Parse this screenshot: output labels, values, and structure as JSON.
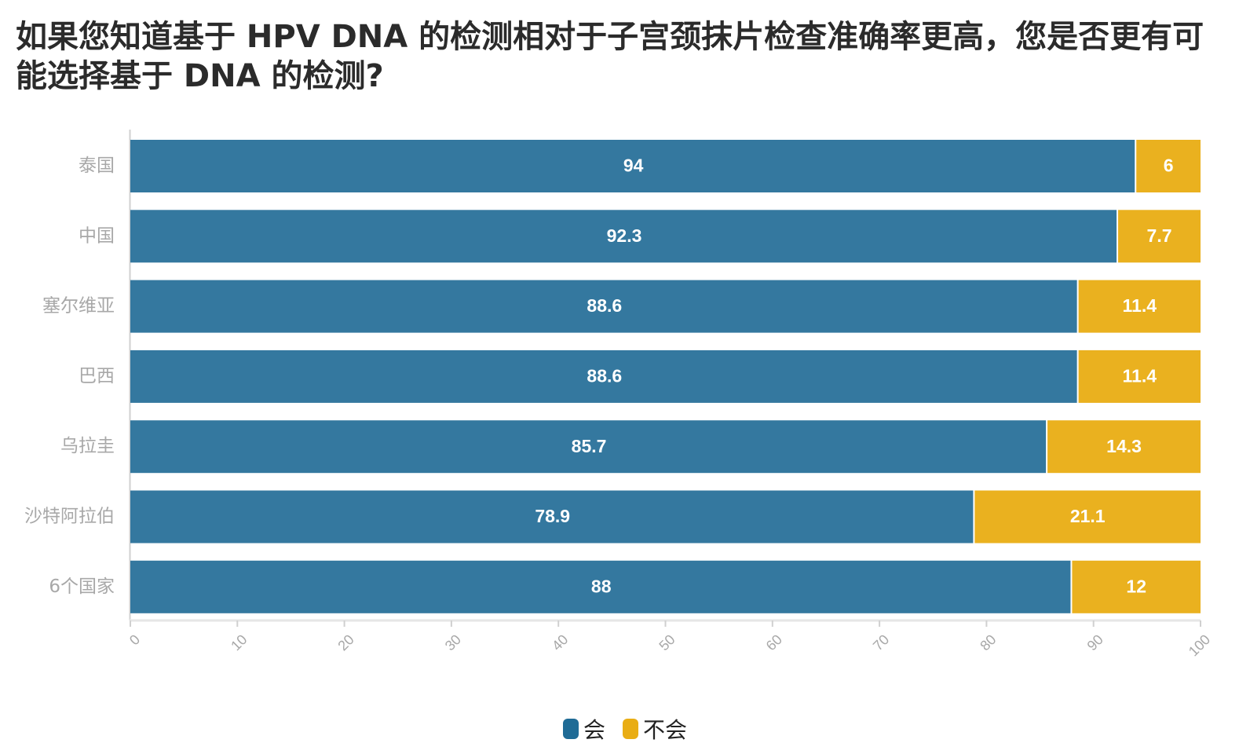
{
  "title": "如果您知道基于 HPV DNA 的检测相对于子宫颈抹片检查准确率更高，您是否更有可能选择基于 DNA 的检测?",
  "colors": {
    "yes": "#34789f",
    "no": "#eab11f",
    "axis": "#d0d0d0",
    "label": "#a8a8a8"
  },
  "legend": [
    {
      "label": "会",
      "color": "#1f6b96"
    },
    {
      "label": "不会",
      "color": "#e9ad14"
    }
  ],
  "chart_data": {
    "type": "bar",
    "orientation": "horizontal",
    "stacked": true,
    "categories": [
      "泰国",
      "中国",
      "塞尔维亚",
      "巴西",
      "乌拉圭",
      "沙特阿拉伯",
      "6个国家"
    ],
    "series": [
      {
        "name": "会",
        "values": [
          94,
          92.3,
          88.6,
          88.6,
          85.7,
          78.9,
          88
        ],
        "labels": [
          "94",
          "92.3",
          "88.6",
          "88.6",
          "85.7",
          "78.9",
          "88"
        ]
      },
      {
        "name": "不会",
        "values": [
          6,
          7.7,
          11.4,
          11.4,
          14.3,
          21.1,
          12
        ],
        "labels": [
          "6",
          "7.7",
          "11.4",
          "11.4",
          "14.3",
          "21.1",
          "12"
        ]
      }
    ],
    "xlim": [
      0,
      100
    ],
    "xticks": [
      "0",
      "10",
      "20",
      "30",
      "40",
      "50",
      "60",
      "70",
      "80",
      "90",
      "100"
    ],
    "legend_position": "bottom",
    "grid": false
  }
}
